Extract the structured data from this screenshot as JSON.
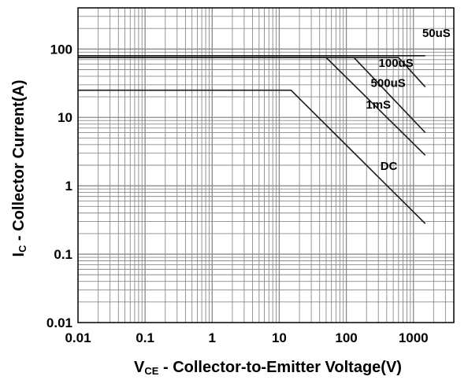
{
  "chart_data": {
    "type": "line",
    "xscale": "log",
    "yscale": "log",
    "xlim": [
      0.01,
      4000
    ],
    "ylim": [
      0.01,
      400
    ],
    "grid": true,
    "xlabel": {
      "main": "V",
      "sub": "CE",
      "rest": " - Collector-to-Emitter Voltage(V)"
    },
    "ylabel": {
      "main": "I",
      "sub": "C",
      "rest": " - Collector Current(A)"
    },
    "xticks": [
      {
        "value": 0.01,
        "label": "0.01"
      },
      {
        "value": 0.1,
        "label": "0.1"
      },
      {
        "value": 1,
        "label": "1"
      },
      {
        "value": 10,
        "label": "10"
      },
      {
        "value": 100,
        "label": "100"
      },
      {
        "value": 1000,
        "label": "1000"
      }
    ],
    "yticks": [
      {
        "value": 0.01,
        "label": "0.01"
      },
      {
        "value": 0.1,
        "label": "0.1"
      },
      {
        "value": 1,
        "label": "1"
      },
      {
        "value": 10,
        "label": "10"
      },
      {
        "value": 100,
        "label": "100"
      }
    ],
    "hlines": [
      75,
      80
    ],
    "series": [
      {
        "name": "DC",
        "label_at": [
          430,
          1.7
        ],
        "points": [
          [
            0.01,
            25
          ],
          [
            15,
            25
          ],
          [
            1500,
            0.28
          ]
        ]
      },
      {
        "name": "1mS",
        "label_at": [
          300,
          13.5
        ],
        "points": [
          [
            0.01,
            75
          ],
          [
            50,
            75
          ],
          [
            1500,
            2.8
          ]
        ]
      },
      {
        "name": "500uS",
        "label_at": [
          420,
          28
        ],
        "points": [
          [
            0.01,
            75
          ],
          [
            130,
            75
          ],
          [
            1500,
            6
          ]
        ]
      },
      {
        "name": "100uS",
        "label_at": [
          550,
          55
        ],
        "points": [
          [
            0.01,
            75
          ],
          [
            600,
            75
          ],
          [
            1500,
            28
          ]
        ]
      },
      {
        "name": "50uS",
        "label_at": [
          2200,
          150
        ],
        "points": [
          [
            0.01,
            80
          ],
          [
            1500,
            80
          ]
        ]
      }
    ]
  }
}
